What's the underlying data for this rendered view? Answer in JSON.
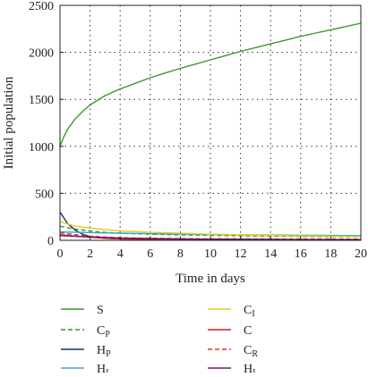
{
  "chart_data": {
    "type": "line",
    "xlabel": "Time in days",
    "ylabel": "Initial population",
    "xlim": [
      0,
      20
    ],
    "ylim": [
      0,
      2500
    ],
    "xticks": [
      "0",
      "2",
      "4",
      "6",
      "8",
      "10",
      "12",
      "14",
      "16",
      "18",
      "20"
    ],
    "yticks": [
      "0",
      "500",
      "1000",
      "1500",
      "2000",
      "2500"
    ],
    "grid": "dotted",
    "legend_placement": "below",
    "series": [
      {
        "name": "S",
        "sub": "",
        "color": "#3a9a2a",
        "dash": "solid",
        "x": [
          0,
          0.25,
          0.5,
          1,
          1.5,
          2,
          3,
          4,
          5,
          6,
          7,
          8,
          9,
          10,
          11,
          12,
          13,
          14,
          15,
          16,
          17,
          18,
          19,
          20
        ],
        "y": [
          1000,
          1100,
          1180,
          1290,
          1370,
          1440,
          1540,
          1610,
          1670,
          1730,
          1780,
          1830,
          1875,
          1920,
          1965,
          2010,
          2050,
          2090,
          2130,
          2170,
          2205,
          2240,
          2275,
          2310
        ]
      },
      {
        "name": "C",
        "sub": "P",
        "color": "#3a9a2a",
        "dash": "dashed",
        "x": [
          0,
          1,
          2,
          3,
          4,
          6,
          8,
          10,
          12,
          14,
          16,
          18,
          20
        ],
        "y": [
          150,
          120,
          100,
          85,
          75,
          65,
          58,
          52,
          48,
          45,
          42,
          40,
          38
        ]
      },
      {
        "name": "H",
        "sub": "P",
        "color": "#1c2e6b",
        "dash": "solid",
        "x": [
          0,
          0.25,
          0.5,
          1,
          1.5,
          2,
          3,
          4,
          6,
          8,
          10,
          14,
          20
        ],
        "y": [
          300,
          240,
          180,
          110,
          65,
          40,
          22,
          15,
          10,
          8,
          7,
          6,
          5
        ]
      },
      {
        "name": "H",
        "sub": "I",
        "color": "#33aacc",
        "dash": "solid",
        "x": [
          0,
          2,
          4,
          6,
          8,
          10,
          12,
          14,
          16,
          18,
          20
        ],
        "y": [
          90,
          82,
          76,
          70,
          66,
          62,
          58,
          56,
          54,
          52,
          50
        ]
      },
      {
        "name": "C",
        "sub": "I",
        "color": "#e0cc1a",
        "dash": "solid",
        "x": [
          0,
          1,
          2,
          3,
          4,
          6,
          8,
          10,
          12,
          14,
          16,
          18,
          20
        ],
        "y": [
          200,
          150,
          130,
          115,
          100,
          85,
          75,
          65,
          58,
          52,
          48,
          45,
          42
        ]
      },
      {
        "name": "C",
        "sub": "",
        "color": "#cc2222",
        "dash": "solid",
        "x": [
          0,
          1,
          2,
          3,
          4,
          6,
          8,
          10,
          14,
          20
        ],
        "y": [
          60,
          45,
          32,
          22,
          15,
          10,
          8,
          7,
          6,
          5
        ]
      },
      {
        "name": "C",
        "sub": "R",
        "color": "#d83030",
        "dash": "dashed",
        "x": [
          0,
          1,
          2,
          3,
          4,
          6,
          8,
          10,
          14,
          20
        ],
        "y": [
          80,
          60,
          45,
          35,
          28,
          22,
          18,
          16,
          14,
          12
        ]
      },
      {
        "name": "H",
        "sub": "I",
        "color": "#6a1a6a",
        "dash": "solid",
        "x": [
          0,
          2,
          4,
          6,
          8,
          10,
          14,
          20
        ],
        "y": [
          50,
          35,
          25,
          20,
          15,
          12,
          10,
          8
        ]
      }
    ]
  }
}
